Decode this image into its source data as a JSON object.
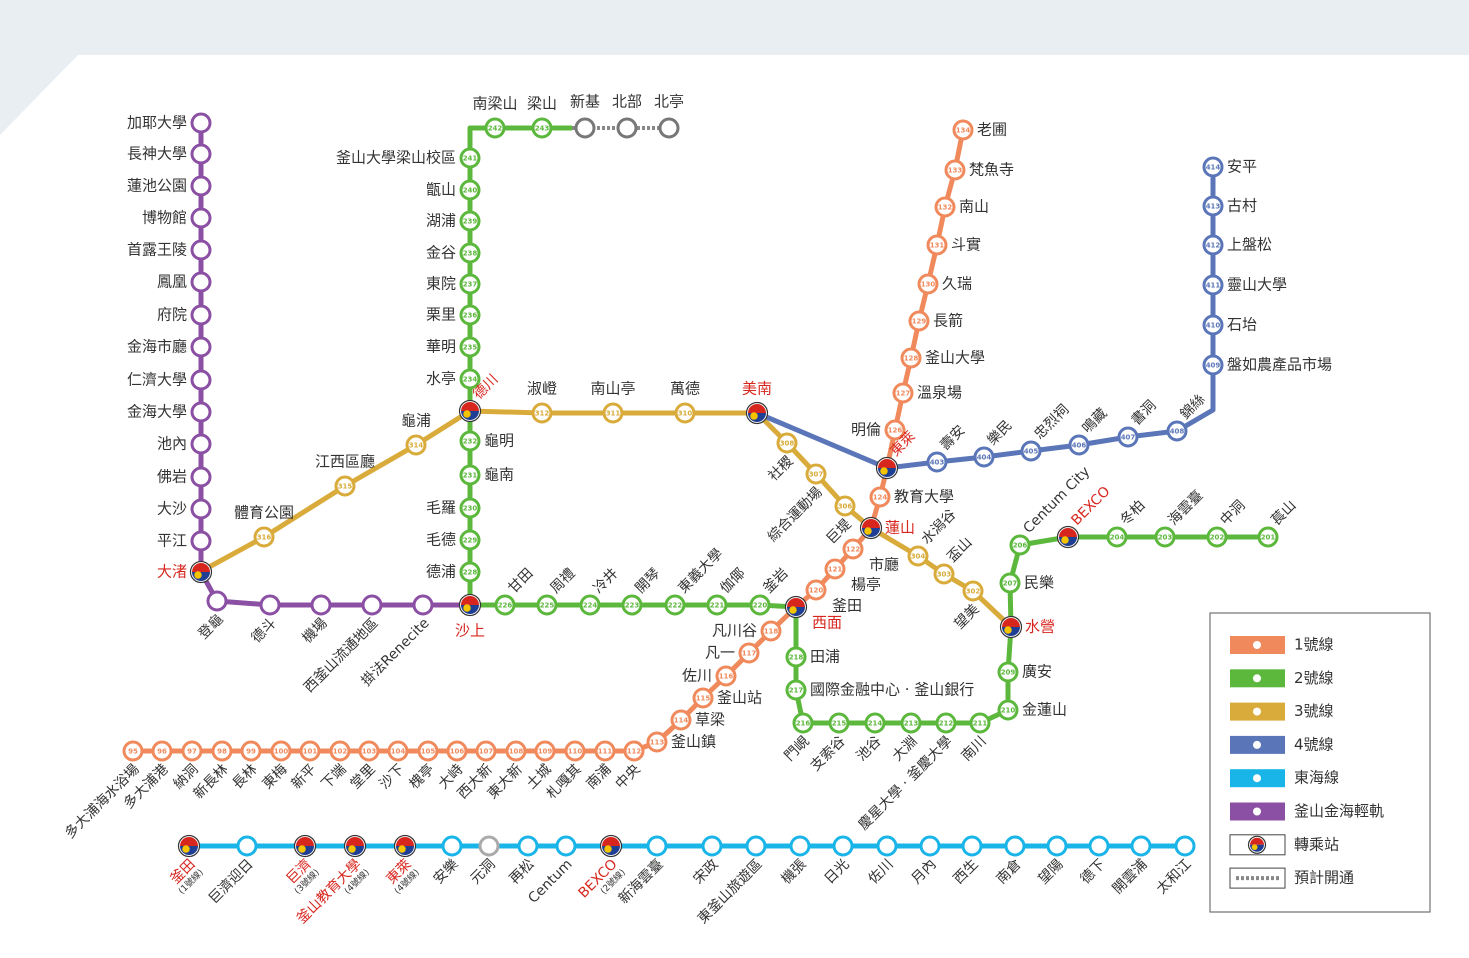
{
  "lines": [
    {
      "name": "1號線",
      "color": "#f08a5d",
      "stations": [
        {
          "code": "134",
          "name": "老圃"
        },
        {
          "code": "133",
          "name": "梵魚寺"
        },
        {
          "code": "132",
          "name": "南山"
        },
        {
          "code": "131",
          "name": "斗實"
        },
        {
          "code": "130",
          "name": "久瑞"
        },
        {
          "code": "129",
          "name": "長箭"
        },
        {
          "code": "128",
          "name": "釜山大學"
        },
        {
          "code": "127",
          "name": "溫泉場"
        },
        {
          "code": "126",
          "name": "明倫"
        },
        {
          "name": "東萊",
          "transfer": true
        },
        {
          "code": "124",
          "name": "教育大學"
        },
        {
          "name": "蓮山",
          "transfer": true
        },
        {
          "code": "122",
          "name": "市廳"
        },
        {
          "code": "121",
          "name": "楊亭"
        },
        {
          "code": "120",
          "name": "釜田"
        },
        {
          "name": "西面",
          "transfer": true
        },
        {
          "code": "118",
          "name": "凡川谷"
        },
        {
          "code": "117",
          "name": "凡一"
        },
        {
          "code": "116",
          "name": "佐川"
        },
        {
          "code": "115",
          "name": "釜山站"
        },
        {
          "code": "114",
          "name": "草梁"
        },
        {
          "code": "113",
          "name": "釜山鎮"
        },
        {
          "code": "112",
          "name": "中央"
        },
        {
          "code": "111",
          "name": "南浦"
        },
        {
          "code": "110",
          "name": "札嘎其"
        },
        {
          "code": "109",
          "name": "土城"
        },
        {
          "code": "108",
          "name": "東大新"
        },
        {
          "code": "107",
          "name": "西大新"
        },
        {
          "code": "106",
          "name": "大峙"
        },
        {
          "code": "105",
          "name": "槐亭"
        },
        {
          "code": "104",
          "name": "沙下"
        },
        {
          "code": "103",
          "name": "堂里"
        },
        {
          "code": "102",
          "name": "下端"
        },
        {
          "code": "101",
          "name": "新平"
        },
        {
          "code": "100",
          "name": "東梅"
        },
        {
          "code": "99",
          "name": "長林"
        },
        {
          "code": "98",
          "name": "新長林"
        },
        {
          "code": "97",
          "name": "納洞"
        },
        {
          "code": "96",
          "name": "多大浦港"
        },
        {
          "code": "95",
          "name": "多大浦海水浴場"
        }
      ]
    },
    {
      "name": "2號線",
      "color": "#5cb83c",
      "stations": [
        {
          "code": "243",
          "name": "梁山"
        },
        {
          "code": "242",
          "name": "南梁山"
        },
        {
          "code": "241",
          "name": "釜山大學梁山校區"
        },
        {
          "code": "240",
          "name": "甑山"
        },
        {
          "code": "239",
          "name": "湖浦"
        },
        {
          "code": "238",
          "name": "金谷"
        },
        {
          "code": "237",
          "name": "東院"
        },
        {
          "code": "236",
          "name": "栗里"
        },
        {
          "code": "235",
          "name": "華明"
        },
        {
          "code": "234",
          "name": "水亭"
        },
        {
          "name": "德川",
          "transfer": true
        },
        {
          "code": "232",
          "name": "龜明"
        },
        {
          "code": "231",
          "name": "龜南"
        },
        {
          "code": "230",
          "name": "毛羅"
        },
        {
          "code": "229",
          "name": "毛德"
        },
        {
          "code": "228",
          "name": "德浦"
        },
        {
          "name": "沙上",
          "transfer": true
        },
        {
          "code": "226",
          "name": "甘田"
        },
        {
          "code": "225",
          "name": "周禮"
        },
        {
          "code": "224",
          "name": "冷井"
        },
        {
          "code": "223",
          "name": "開琴"
        },
        {
          "code": "222",
          "name": "東義大學"
        },
        {
          "code": "221",
          "name": "伽倻"
        },
        {
          "code": "220",
          "name": "釜岩"
        },
        {
          "code": "218",
          "name": "田浦"
        },
        {
          "code": "217",
          "name": "國際金融中心 · 釜山銀行"
        },
        {
          "code": "216",
          "name": "門峴"
        },
        {
          "code": "215",
          "name": "支索谷"
        },
        {
          "code": "214",
          "name": "池谷"
        },
        {
          "code": "213",
          "name": "大淵"
        },
        {
          "code": "212",
          "name": "慶星大學 · 釜慶大學"
        },
        {
          "code": "211",
          "name": "南川"
        },
        {
          "code": "210",
          "name": "金蓮山"
        },
        {
          "code": "209",
          "name": "廣安"
        },
        {
          "name": "水營",
          "transfer": true
        },
        {
          "code": "207",
          "name": "民樂"
        },
        {
          "code": "206",
          "name": "Centum City"
        },
        {
          "name": "BEXCO",
          "transfer": true
        },
        {
          "code": "204",
          "name": "冬柏"
        },
        {
          "code": "203",
          "name": "海雲臺"
        },
        {
          "code": "202",
          "name": "中洞"
        },
        {
          "code": "201",
          "name": "萇山"
        }
      ],
      "planned": [
        {
          "name": "新基"
        },
        {
          "name": "北部"
        },
        {
          "name": "北亭"
        }
      ]
    },
    {
      "name": "3號線",
      "color": "#d9ab3a",
      "stations": [
        {
          "code": "316",
          "name": "體育公園"
        },
        {
          "code": "315",
          "name": "江西區廳"
        },
        {
          "code": "314",
          "name": "龜浦"
        },
        {
          "code": "312",
          "name": "淑嶝"
        },
        {
          "code": "311",
          "name": "南山亭"
        },
        {
          "code": "310",
          "name": "萬德"
        },
        {
          "name": "美南",
          "transfer": true
        },
        {
          "code": "308",
          "name": "社稷"
        },
        {
          "code": "307",
          "name": "綜合運動場"
        },
        {
          "code": "306",
          "name": "巨堤"
        },
        {
          "code": "304",
          "name": "水潟谷"
        },
        {
          "code": "303",
          "name": "盃山"
        },
        {
          "code": "302",
          "name": "望美"
        }
      ]
    },
    {
      "name": "4號線",
      "color": "#5b76b8",
      "stations": [
        {
          "code": "414",
          "name": "安平"
        },
        {
          "code": "413",
          "name": "古村"
        },
        {
          "code": "412",
          "name": "上盤松"
        },
        {
          "code": "411",
          "name": "靈山大學"
        },
        {
          "code": "410",
          "name": "石坮"
        },
        {
          "code": "409",
          "name": "盤如農產品市場"
        },
        {
          "code": "408",
          "name": "錦絲"
        },
        {
          "code": "407",
          "name": "書洞"
        },
        {
          "code": "406",
          "name": "鳴藏"
        },
        {
          "code": "405",
          "name": "忠烈祠"
        },
        {
          "code": "404",
          "name": "樂民"
        },
        {
          "code": "403",
          "name": "壽安"
        }
      ]
    },
    {
      "name": "東海線",
      "color": "#1ab5e8",
      "stations": [
        {
          "name": "釜田",
          "note": "(1號線)",
          "transfer": true
        },
        {
          "name": "巨濟迎日"
        },
        {
          "name": "巨濟",
          "note": "(3號線)",
          "transfer": true
        },
        {
          "name": "釜山教育大學",
          "note": "(4號線)",
          "transfer": true
        },
        {
          "name": "東萊",
          "note": "(4號線)",
          "transfer": true
        },
        {
          "name": "安樂"
        },
        {
          "name": "元洞",
          "planned": true
        },
        {
          "name": "再松"
        },
        {
          "name": "Centum"
        },
        {
          "name": "BEXCO",
          "note": "(2號線)",
          "transfer": true
        },
        {
          "name": "新海雲臺"
        },
        {
          "name": "宋政"
        },
        {
          "name": "東釜山旅遊區"
        },
        {
          "name": "機張"
        },
        {
          "name": "日光"
        },
        {
          "name": "佐川"
        },
        {
          "name": "月內"
        },
        {
          "name": "西生"
        },
        {
          "name": "南倉"
        },
        {
          "name": "望陽"
        },
        {
          "name": "德下"
        },
        {
          "name": "開雲浦"
        },
        {
          "name": "太和江"
        }
      ]
    },
    {
      "name": "釜山金海輕軌",
      "color": "#8b4fa3",
      "stations": [
        {
          "name": "加耶大學"
        },
        {
          "name": "長神大學"
        },
        {
          "name": "蓮池公園"
        },
        {
          "name": "博物館"
        },
        {
          "name": "首露王陵"
        },
        {
          "name": "鳳凰"
        },
        {
          "name": "府院"
        },
        {
          "name": "金海市廳"
        },
        {
          "name": "仁濟大學"
        },
        {
          "name": "金海大學"
        },
        {
          "name": "池內"
        },
        {
          "name": "佛岩"
        },
        {
          "name": "大沙"
        },
        {
          "name": "平江"
        },
        {
          "name": "大渚",
          "transfer": true
        },
        {
          "name": "登龜"
        },
        {
          "name": "德斗"
        },
        {
          "name": "機場"
        },
        {
          "name": "西釜山流通地區"
        },
        {
          "name": "掛法Renecite"
        }
      ]
    }
  ],
  "legend": {
    "transfer": "轉乘站",
    "planned": "預計開通"
  }
}
